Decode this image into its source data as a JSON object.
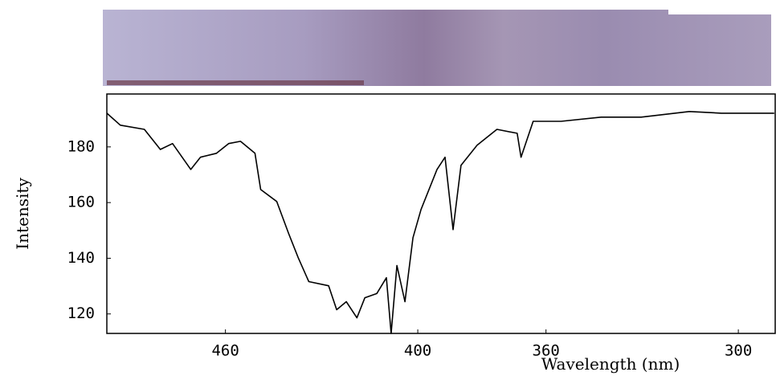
{
  "chart_data": {
    "type": "line",
    "x_label": "Wavelength (nm)",
    "y_label": "Intensity",
    "x": [
      497,
      492.8,
      485.3,
      480.3,
      476.5,
      470.8,
      467.8,
      462.8,
      459,
      455.3,
      450.8,
      449,
      444,
      440.3,
      437.3,
      434,
      427.8,
      425.3,
      422.3,
      419,
      416.5,
      412.8,
      409.8,
      408.3,
      406.5,
      404,
      401.5,
      399,
      394,
      391.5,
      389,
      386.5,
      381.5,
      375.3,
      369,
      367.8,
      364,
      355.3,
      342.8,
      330.3,
      315.3,
      305.3,
      288.8
    ],
    "series": [
      {
        "color": "#000000",
        "values": [
          192.1,
          187.8,
          186.3,
          179.1,
          181.2,
          171.9,
          176.3,
          177.7,
          181.2,
          182,
          177.7,
          164.7,
          160.4,
          148.9,
          140.2,
          131.6,
          130.1,
          121.5,
          124.4,
          118.6,
          125.8,
          127.3,
          133,
          113,
          137.4,
          124.4,
          147.4,
          157.5,
          171.9,
          176.3,
          150.3,
          173.4,
          180.6,
          186.3,
          184.9,
          176.3,
          189.2,
          189.2,
          190.7,
          190.7,
          192.7,
          192.1,
          192.1
        ]
      }
    ],
    "xlim": [
      497,
      288.5
    ],
    "xticks": [
      460,
      400,
      360,
      300
    ],
    "ylim": [
      113,
      199
    ],
    "yticks": [
      120,
      140,
      160,
      180
    ]
  }
}
